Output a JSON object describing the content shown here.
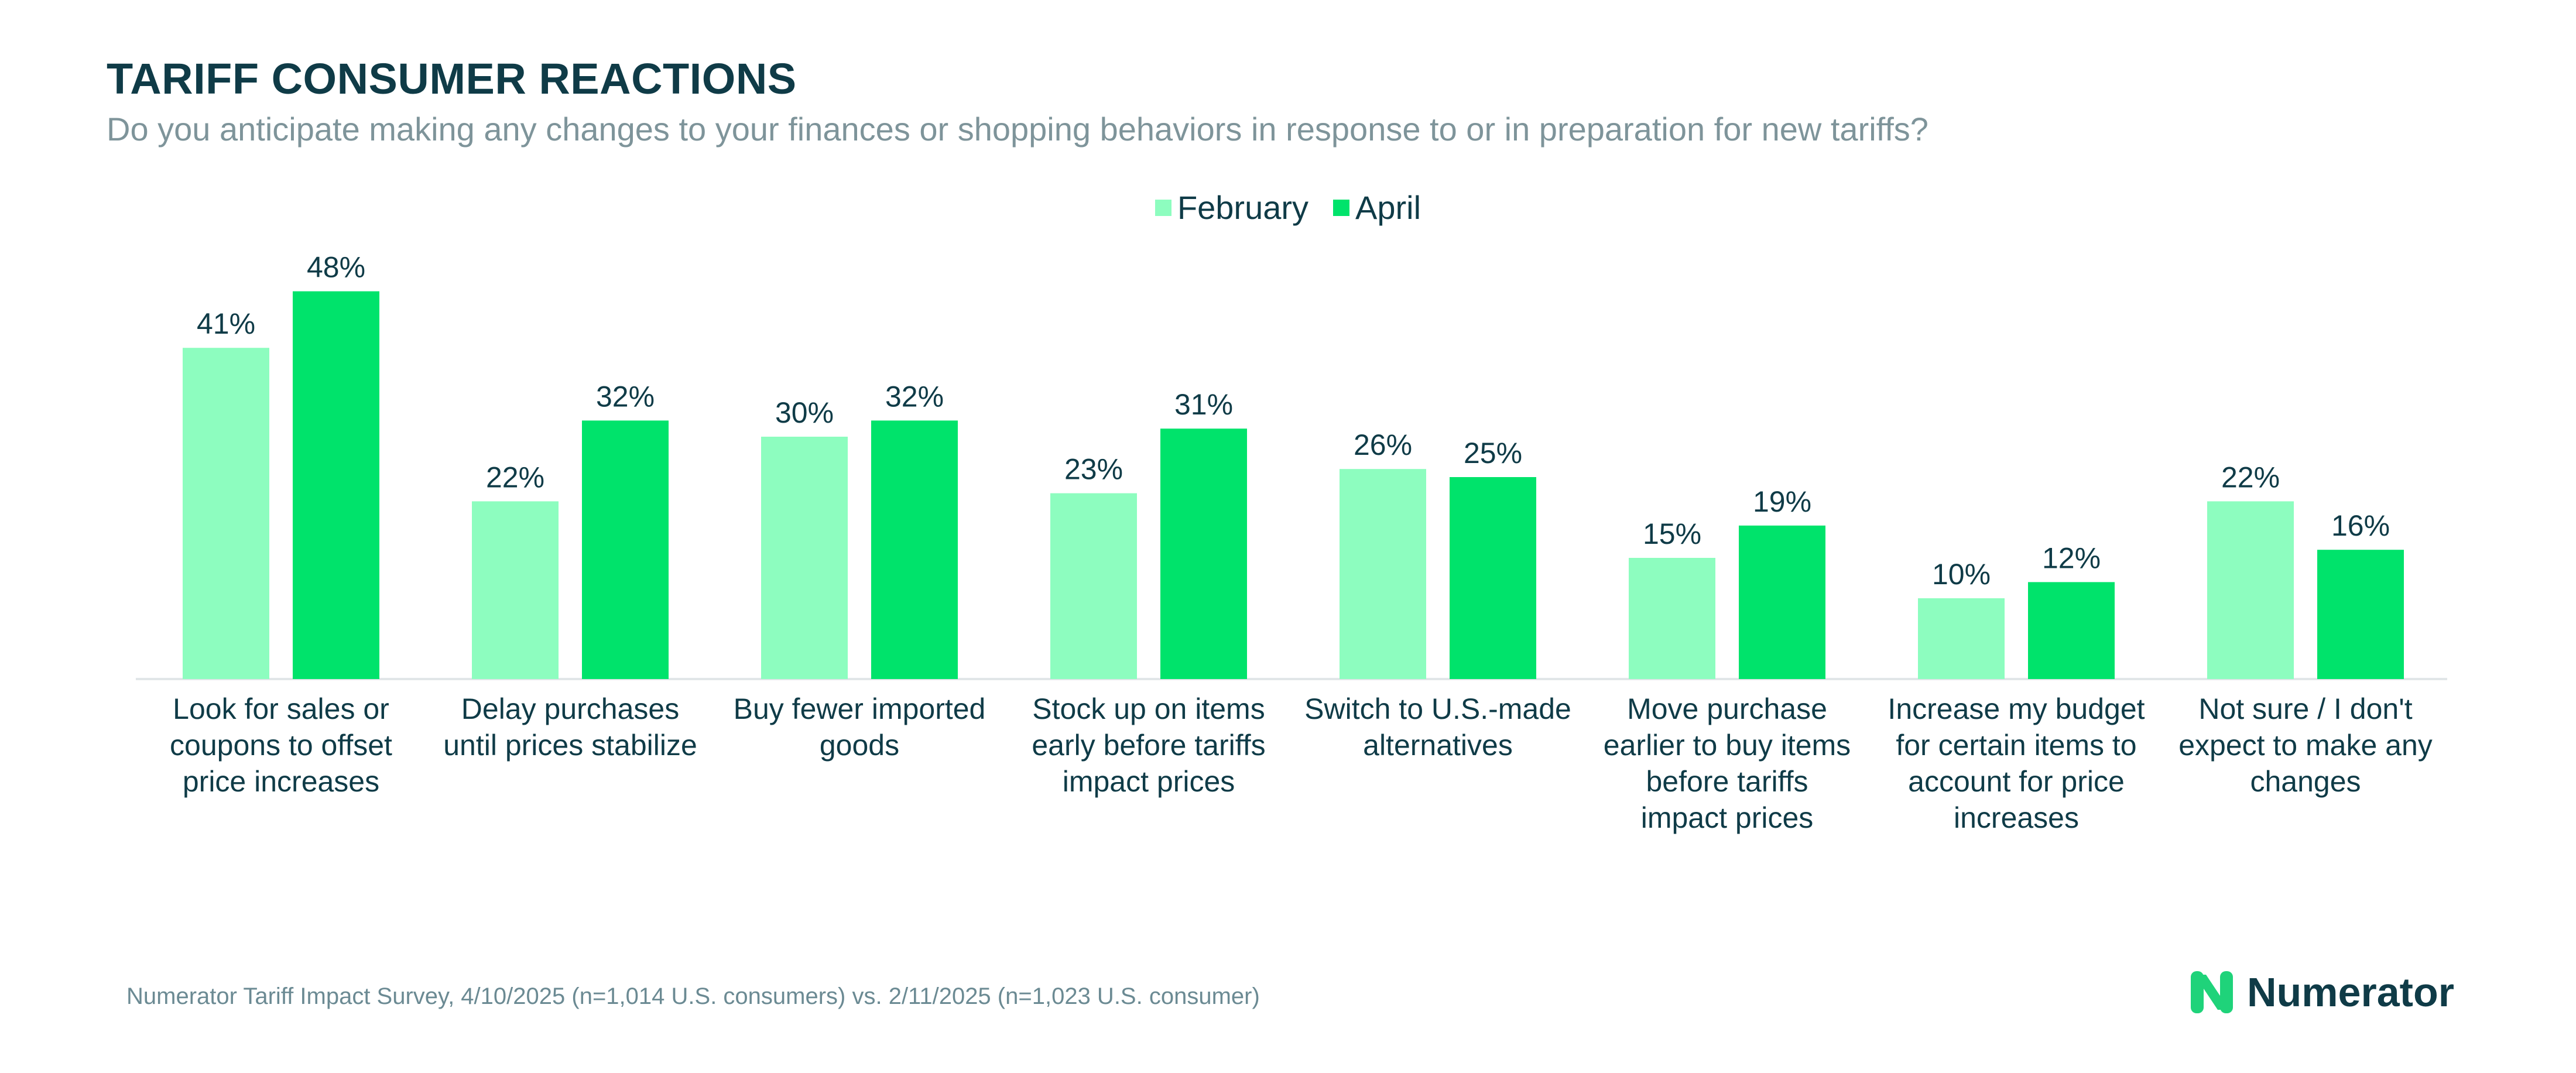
{
  "header": {
    "title": "TARIFF CONSUMER REACTIONS",
    "subtitle": "Do you anticipate making any changes to your finances or shopping behaviors in response to or in preparation for new tariffs?"
  },
  "colors": {
    "february": "#8dfdbf",
    "april": "#00e36b",
    "text_dark": "#0f3b47",
    "axis_line": "#e1e6e8"
  },
  "chart_data": {
    "type": "bar",
    "categories": [
      "Look for sales or coupons to offset price increases",
      "Delay purchases until prices stabilize",
      "Buy fewer imported goods",
      "Stock up on items early before tariffs impact prices",
      "Switch to U.S.-made alternatives",
      "Move purchase earlier to buy items before tariffs impact prices",
      "Increase my budget for certain items to account for price increases",
      "Not sure / I don't expect to make any changes"
    ],
    "category_lines": [
      [
        "Look for sales or",
        "coupons to offset",
        "price increases"
      ],
      [
        "Delay purchases",
        "until prices stabilize"
      ],
      [
        "Buy fewer imported",
        "goods"
      ],
      [
        "Stock up on items",
        "early before tariffs",
        "impact prices"
      ],
      [
        "Switch to U.S.-made",
        "alternatives"
      ],
      [
        "Move purchase",
        "earlier to buy items",
        "before tariffs",
        "impact prices"
      ],
      [
        "Increase my budget",
        "for certain items to",
        "account for price",
        "increases"
      ],
      [
        "Not sure / I don't",
        "expect to make any",
        "changes"
      ]
    ],
    "series": [
      {
        "name": "February",
        "values": [
          41,
          22,
          30,
          23,
          26,
          15,
          10,
          22
        ]
      },
      {
        "name": "April",
        "values": [
          48,
          32,
          32,
          31,
          25,
          19,
          12,
          16
        ]
      }
    ],
    "value_format": "{v}%",
    "ylim": [
      0,
      50
    ],
    "legend_position": "top-center",
    "grid": false
  },
  "footer": {
    "source": "Numerator Tariff Impact Survey, 4/10/2025 (n=1,014 U.S. consumers) vs. 2/11/2025 (n=1,023 U.S. consumer)",
    "brand": "Numerator",
    "logo_icon": "numerator-logo-icon"
  }
}
